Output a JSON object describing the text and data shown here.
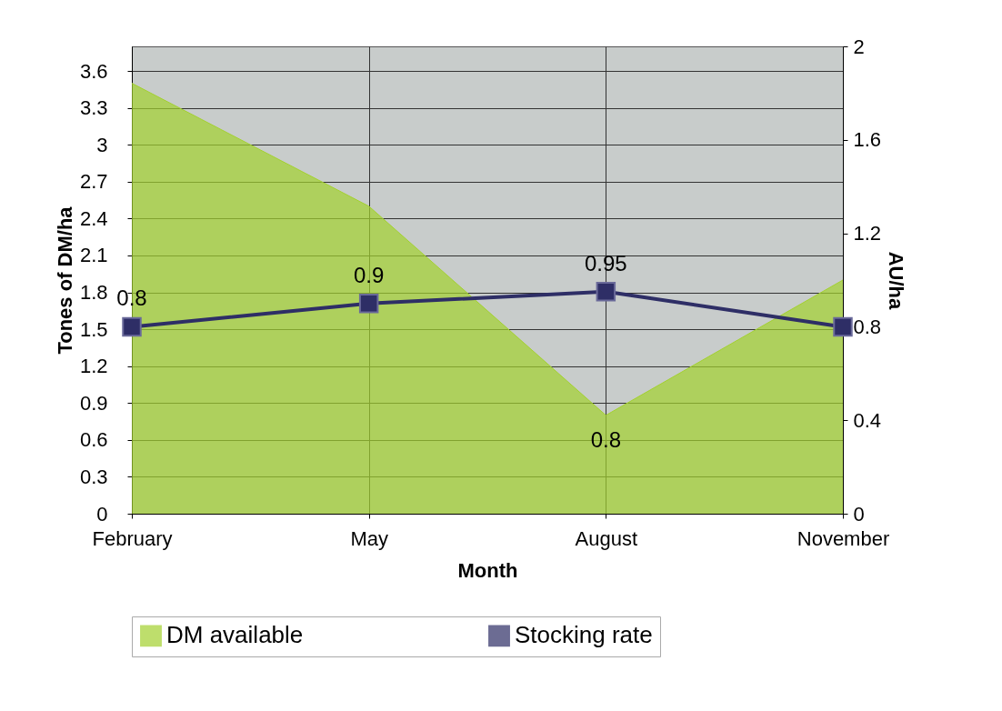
{
  "chart_data": {
    "type": "area",
    "xlabel": "Month",
    "ylabel": "Tones of DM/ha",
    "y2label": "AU/ha",
    "categories": [
      "February",
      "May",
      "August",
      "November"
    ],
    "series": [
      {
        "name": "DM available",
        "color": "#a3d12e",
        "values": [
          3.5,
          2.5,
          0.8,
          1.9
        ],
        "value_labels": [
          null,
          null,
          "0.8",
          null
        ]
      },
      {
        "name": "Stocking rate",
        "type": "line",
        "marker": "square",
        "axis": "y2",
        "color": "#2e2e66",
        "values": [
          0.8,
          0.9,
          0.95,
          0.8
        ],
        "value_labels": [
          "0.8",
          "0.9",
          "0.95",
          null
        ]
      }
    ],
    "ylim": [
      0,
      3.8
    ],
    "yticks": [
      0,
      0.3,
      0.6,
      0.9,
      1.2,
      1.5,
      1.8,
      2.1,
      2.4,
      2.7,
      3,
      3.3,
      3.6
    ],
    "y2lim": [
      0,
      2
    ],
    "y2ticks": [
      0,
      0.4,
      0.8,
      1.2,
      1.6,
      2
    ],
    "grid": true,
    "legend": "bottom",
    "line_style": "solid"
  }
}
